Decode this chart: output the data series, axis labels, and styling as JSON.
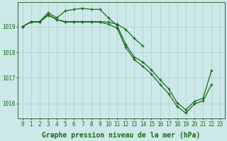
{
  "bg_color": "#cce8e8",
  "grid_color": "#aacccc",
  "line_color": "#1a6b1a",
  "xlabel": "Graphe pression niveau de la mer (hPa)",
  "xlabel_fontsize": 7,
  "tick_label_fontsize": 5.5,
  "ylim": [
    1015.4,
    1019.95
  ],
  "yticks": [
    1016,
    1017,
    1018,
    1019
  ],
  "xticks": [
    0,
    1,
    2,
    3,
    4,
    5,
    6,
    7,
    8,
    9,
    10,
    11,
    12,
    13,
    14,
    15,
    16,
    17,
    18,
    19,
    20,
    21,
    22,
    23
  ],
  "s1_x": [
    0,
    1,
    2,
    3,
    4,
    5,
    6,
    7,
    8,
    9,
    10,
    11,
    12,
    13,
    14,
    15,
    16,
    17,
    18,
    19,
    20,
    21,
    22
  ],
  "s1_y": [
    1019.0,
    1019.2,
    1019.2,
    1019.55,
    1019.35,
    1019.62,
    1019.68,
    1019.72,
    1019.68,
    1019.68,
    1019.35,
    1019.05,
    1018.32,
    1017.82,
    1017.62,
    1017.32,
    1016.92,
    1016.58,
    1016.02,
    1015.75,
    1016.08,
    1016.2,
    1017.3
  ],
  "s2_x": [
    0,
    1,
    2,
    3,
    4,
    5,
    6,
    7,
    8,
    9,
    10,
    11,
    12,
    13,
    14,
    15,
    16,
    17,
    18,
    19,
    20,
    21,
    22
  ],
  "s2_y": [
    1019.0,
    1019.18,
    1019.18,
    1019.45,
    1019.28,
    1019.18,
    1019.18,
    1019.18,
    1019.18,
    1019.18,
    1019.1,
    1018.95,
    1018.2,
    1017.72,
    1017.45,
    1017.15,
    1016.75,
    1016.38,
    1015.88,
    1015.62,
    1015.98,
    1016.1,
    1016.75
  ],
  "s3_x": [
    0,
    1,
    2,
    3,
    4,
    5,
    6,
    7,
    8,
    9,
    10,
    11,
    12,
    13,
    14
  ],
  "s3_y": [
    1019.0,
    1019.18,
    1019.18,
    1019.48,
    1019.28,
    1019.2,
    1019.2,
    1019.2,
    1019.2,
    1019.2,
    1019.18,
    1019.1,
    1018.9,
    1018.55,
    1018.25
  ]
}
